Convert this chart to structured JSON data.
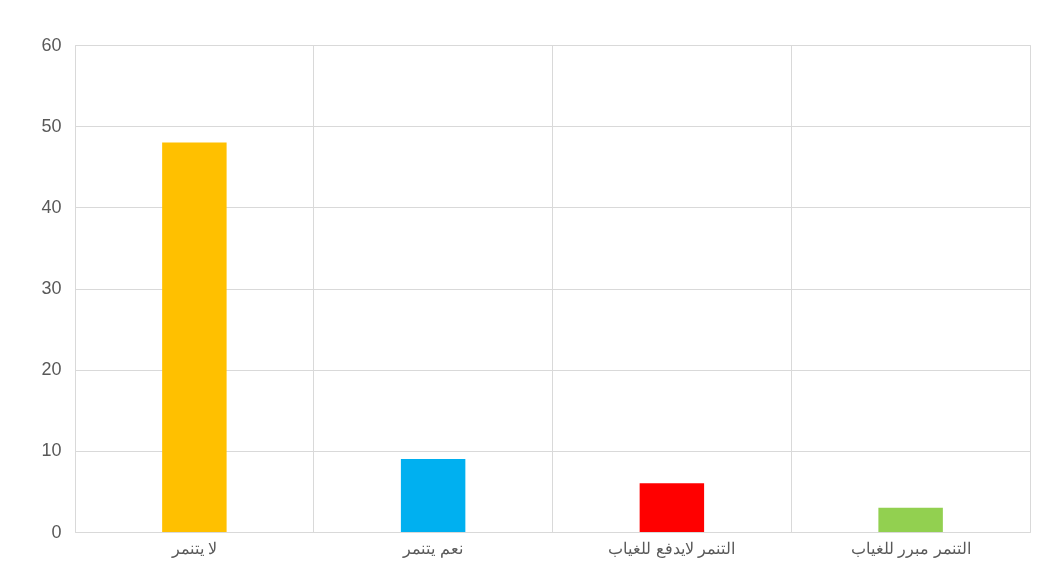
{
  "chart_data": {
    "type": "bar",
    "categories": [
      "لا يتنمر",
      "نعم يتنمر",
      "التنمر لايدفع للغياب",
      "التنمر مبرر للغياب"
    ],
    "values": [
      48,
      9,
      6,
      3
    ],
    "colors": [
      "#ffc000",
      "#00b0f0",
      "#ff0000",
      "#92d050"
    ],
    "ylim": [
      0,
      60
    ],
    "yticks": [
      0,
      10,
      20,
      30,
      40,
      50,
      60
    ],
    "grid": true
  }
}
